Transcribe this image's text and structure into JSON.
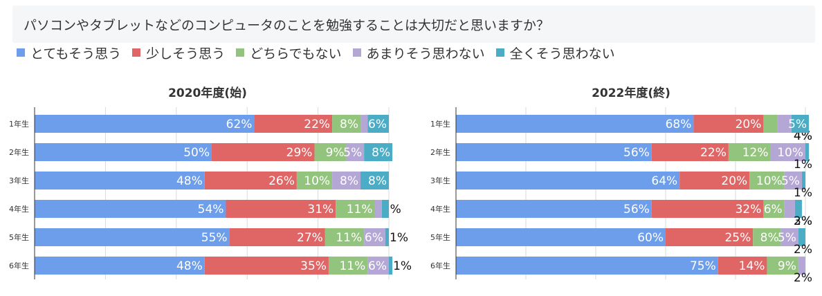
{
  "question": "パソコンやタブレットなどのコンピュータのことを勉強することは大切だと思いますか？",
  "legend": [
    {
      "label": "とてもそう思う",
      "color": "#6d9eeb"
    },
    {
      "label": "少しそう思う",
      "color": "#e06666"
    },
    {
      "label": "どちらでもない",
      "color": "#93c47d"
    },
    {
      "label": "あまりそう思わない",
      "color": "#b4a7d6"
    },
    {
      "label": "全くそう思わない",
      "color": "#4aacc5"
    }
  ],
  "chart_data": [
    {
      "type": "bar",
      "orientation": "horizontal",
      "stacked": true,
      "title": "2020年度(始)",
      "categories": [
        "1年生",
        "2年生",
        "3年生",
        "4年生",
        "5年生",
        "6年生"
      ],
      "series": [
        {
          "name": "とてもそう思う",
          "values": [
            62,
            50,
            48,
            54,
            55,
            48
          ]
        },
        {
          "name": "少しそう思う",
          "values": [
            22,
            29,
            26,
            31,
            27,
            35
          ]
        },
        {
          "name": "どちらでもない",
          "values": [
            8,
            9,
            10,
            11,
            11,
            11
          ]
        },
        {
          "name": "あまりそう思わない",
          "values": [
            2,
            5,
            8,
            2,
            6,
            6
          ]
        },
        {
          "name": "全くそう思わない",
          "values": [
            6,
            8,
            8,
            2,
            1,
            1
          ]
        }
      ],
      "hidden_labels": [
        [],
        [],
        [],
        [
          4
        ],
        [],
        []
      ],
      "xlim": [
        0,
        100
      ],
      "grid": true
    },
    {
      "type": "bar",
      "orientation": "horizontal",
      "stacked": true,
      "title": "2022年度(終)",
      "categories": [
        "1年生",
        "2年生",
        "3年生",
        "4年生",
        "5年生",
        "6年生"
      ],
      "series": [
        {
          "name": "とてもそう思う",
          "values": [
            68,
            56,
            64,
            56,
            60,
            75
          ]
        },
        {
          "name": "少しそう思う",
          "values": [
            20,
            22,
            20,
            32,
            25,
            14
          ]
        },
        {
          "name": "どちらでもない",
          "values": [
            4,
            12,
            10,
            6,
            8,
            9
          ]
        },
        {
          "name": "あまりそう思わない",
          "values": [
            4,
            10,
            5,
            3,
            5,
            2
          ]
        },
        {
          "name": "全くそう思わない",
          "values": [
            5,
            1,
            1,
            2,
            2,
            0
          ]
        }
      ],
      "hidden_labels": [
        [],
        [],
        [],
        [],
        [],
        [
          4
        ]
      ],
      "xlim": [
        0,
        100
      ],
      "grid": true
    }
  ]
}
